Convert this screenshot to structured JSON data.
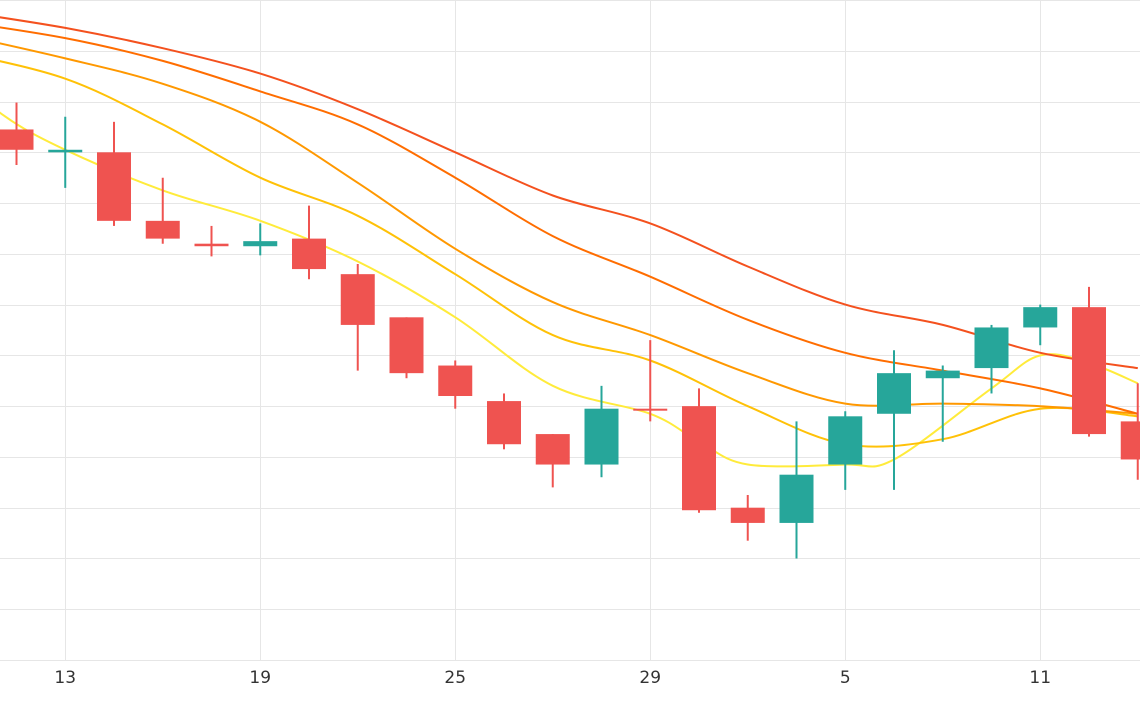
{
  "chart_data": {
    "type": "candlestick",
    "colors": {
      "up": "#26a69a",
      "down": "#ef5350"
    },
    "x_axis": {
      "ticks": [
        {
          "label": "13",
          "index": 1
        },
        {
          "label": "19",
          "index": 5
        },
        {
          "label": "25",
          "index": 9
        },
        {
          "label": "29",
          "index": 13
        },
        {
          "label": "5",
          "index": 17
        },
        {
          "label": "11",
          "index": 21
        }
      ]
    },
    "y_axis": {
      "range": [
        0,
        13
      ],
      "grid_step": 1
    },
    "grid": true,
    "candles": [
      {
        "o": 10.45,
        "h": 10.98,
        "l": 9.75,
        "c": 10.05
      },
      {
        "o": 10.0,
        "h": 10.7,
        "l": 9.3,
        "c": 10.05
      },
      {
        "o": 10.0,
        "h": 10.6,
        "l": 8.55,
        "c": 8.65
      },
      {
        "o": 8.65,
        "h": 9.5,
        "l": 8.2,
        "c": 8.3
      },
      {
        "o": 8.2,
        "h": 8.55,
        "l": 7.95,
        "c": 8.15
      },
      {
        "o": 8.15,
        "h": 8.6,
        "l": 7.97,
        "c": 8.25
      },
      {
        "o": 8.3,
        "h": 8.95,
        "l": 7.5,
        "c": 7.7
      },
      {
        "o": 7.6,
        "h": 7.8,
        "l": 5.7,
        "c": 6.6
      },
      {
        "o": 6.75,
        "h": 6.75,
        "l": 5.55,
        "c": 5.65
      },
      {
        "o": 5.8,
        "h": 5.9,
        "l": 4.95,
        "c": 5.2
      },
      {
        "o": 5.1,
        "h": 5.25,
        "l": 4.15,
        "c": 4.25
      },
      {
        "o": 4.45,
        "h": 4.45,
        "l": 3.4,
        "c": 3.85
      },
      {
        "o": 3.85,
        "h": 5.4,
        "l": 3.6,
        "c": 4.95
      },
      {
        "o": 4.95,
        "h": 6.3,
        "l": 4.7,
        "c": 4.95
      },
      {
        "o": 5.0,
        "h": 5.35,
        "l": 2.9,
        "c": 2.95
      },
      {
        "o": 3.0,
        "h": 3.25,
        "l": 2.35,
        "c": 2.7
      },
      {
        "o": 2.7,
        "h": 4.7,
        "l": 2.0,
        "c": 3.65
      },
      {
        "o": 3.85,
        "h": 4.9,
        "l": 3.35,
        "c": 4.8
      },
      {
        "o": 4.85,
        "h": 6.1,
        "l": 3.35,
        "c": 5.65
      },
      {
        "o": 5.55,
        "h": 5.8,
        "l": 4.3,
        "c": 5.7
      },
      {
        "o": 5.75,
        "h": 6.6,
        "l": 5.25,
        "c": 6.55
      },
      {
        "o": 6.55,
        "h": 7.0,
        "l": 6.2,
        "c": 6.95
      },
      {
        "o": 6.95,
        "h": 7.35,
        "l": 4.4,
        "c": 4.45
      },
      {
        "o": 4.7,
        "h": 5.45,
        "l": 3.55,
        "c": 3.95
      }
    ],
    "moving_averages": [
      {
        "color": "#ffeb3b",
        "points": [
          [
            -1.3,
            11.65
          ],
          [
            -0.3,
            10.75
          ],
          [
            1,
            10.05
          ],
          [
            3,
            9.25
          ],
          [
            5,
            8.65
          ],
          [
            7,
            7.85
          ],
          [
            9,
            6.75
          ],
          [
            11,
            5.4
          ],
          [
            13,
            4.85
          ],
          [
            14,
            4.3
          ],
          [
            15,
            3.85
          ],
          [
            17,
            3.85
          ],
          [
            18,
            3.95
          ],
          [
            20,
            5.35
          ],
          [
            21,
            6.0
          ],
          [
            22,
            5.85
          ],
          [
            23,
            5.45
          ]
        ]
      },
      {
        "color": "#ffc107",
        "points": [
          [
            -1.3,
            12.0
          ],
          [
            1,
            11.45
          ],
          [
            3,
            10.55
          ],
          [
            5,
            9.5
          ],
          [
            7,
            8.75
          ],
          [
            9,
            7.6
          ],
          [
            11,
            6.4
          ],
          [
            13,
            5.9
          ],
          [
            15,
            5.0
          ],
          [
            17,
            4.25
          ],
          [
            19,
            4.35
          ],
          [
            21,
            4.95
          ],
          [
            23,
            4.8
          ]
        ]
      },
      {
        "color": "#ff9800",
        "points": [
          [
            -1.3,
            12.35
          ],
          [
            1,
            11.85
          ],
          [
            3,
            11.35
          ],
          [
            5,
            10.6
          ],
          [
            7,
            9.4
          ],
          [
            9,
            8.1
          ],
          [
            11,
            7.05
          ],
          [
            13,
            6.4
          ],
          [
            15,
            5.65
          ],
          [
            17,
            5.05
          ],
          [
            19,
            5.05
          ],
          [
            21,
            5.0
          ],
          [
            23,
            4.85
          ]
        ]
      },
      {
        "color": "#ff6d00",
        "points": [
          [
            -1.3,
            12.6
          ],
          [
            1,
            12.25
          ],
          [
            3,
            11.8
          ],
          [
            5,
            11.2
          ],
          [
            7,
            10.55
          ],
          [
            9,
            9.5
          ],
          [
            11,
            8.35
          ],
          [
            13,
            7.55
          ],
          [
            15,
            6.7
          ],
          [
            17,
            6.05
          ],
          [
            19,
            5.7
          ],
          [
            21,
            5.35
          ],
          [
            23,
            4.85
          ]
        ]
      },
      {
        "color": "#f4511e",
        "points": [
          [
            -1.3,
            12.8
          ],
          [
            1,
            12.45
          ],
          [
            3,
            12.05
          ],
          [
            5,
            11.55
          ],
          [
            7,
            10.85
          ],
          [
            9,
            10.0
          ],
          [
            11,
            9.15
          ],
          [
            13,
            8.6
          ],
          [
            15,
            7.75
          ],
          [
            17,
            7.0
          ],
          [
            19,
            6.6
          ],
          [
            21,
            6.05
          ],
          [
            23,
            5.75
          ]
        ]
      }
    ]
  }
}
